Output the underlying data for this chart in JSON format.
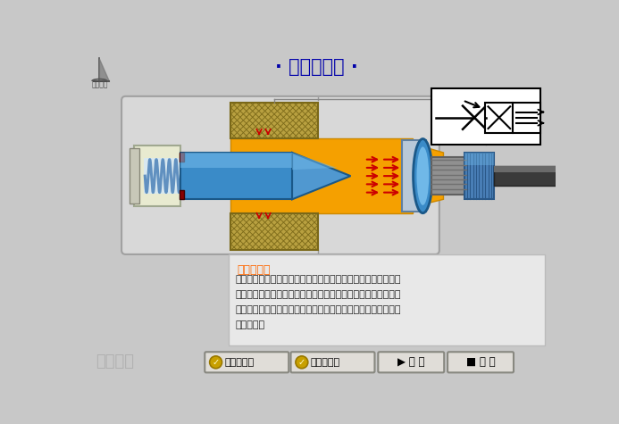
{
  "title": "· 排气节流阀 ·",
  "title_color": "#0000AA",
  "bg_color": "#C8C8C8",
  "func_title": "功能说明：",
  "func_title_color": "#FF6600",
  "func_text_line1": "气体从进气口进入阀内，由节流口节流后经消声器排出，因而，",
  "func_text_line2": "排气节流阀不仅能调节执行元件的运动速度，还能起到降低噪声",
  "func_text_line3": "的作用。调节螺钉可以调节节流阀阀面积，及可以调节排气口出",
  "func_text_line4": "口量大小。",
  "logo_text1": "达岸教育",
  "logo_text2": "机工教育",
  "btn1": "节流口减小",
  "btn2": "节流口增大",
  "btn3": "播 放",
  "btn4": "复 位",
  "silencer_color": "#B8A040",
  "silencer_edge": "#7A6818",
  "orange_fill": "#F5A000",
  "orange_dark": "#CC8800",
  "blue_body": "#3A8BC8",
  "blue_light": "#70B8E8",
  "blue_mid": "#5098D0",
  "spring_color": "#6090C0",
  "spring_bg": "#D8E8F0",
  "housing_fill": "#D8D8D8",
  "housing_edge": "#A0A0A0",
  "left_cap_fill": "#E8EAD0",
  "left_end_fill": "#C8C8B8",
  "dark_stopper": "#880000",
  "screw_fill": "#909090",
  "knob_fill": "#4A80B8",
  "knob_edge": "#2A5888",
  "pipe_fill": "#3A3A3A",
  "pipe_light": "#6A6A6A",
  "arrow_color": "#CC0000",
  "sym_bg": "#FFFFFF",
  "text_box_fill": "#E8E8E8",
  "text_box_edge": "#BBBBBB",
  "btn_fill": "#E0DDD8",
  "btn_edge": "#888880",
  "gold_fill": "#C8A000",
  "gold_edge": "#987800"
}
